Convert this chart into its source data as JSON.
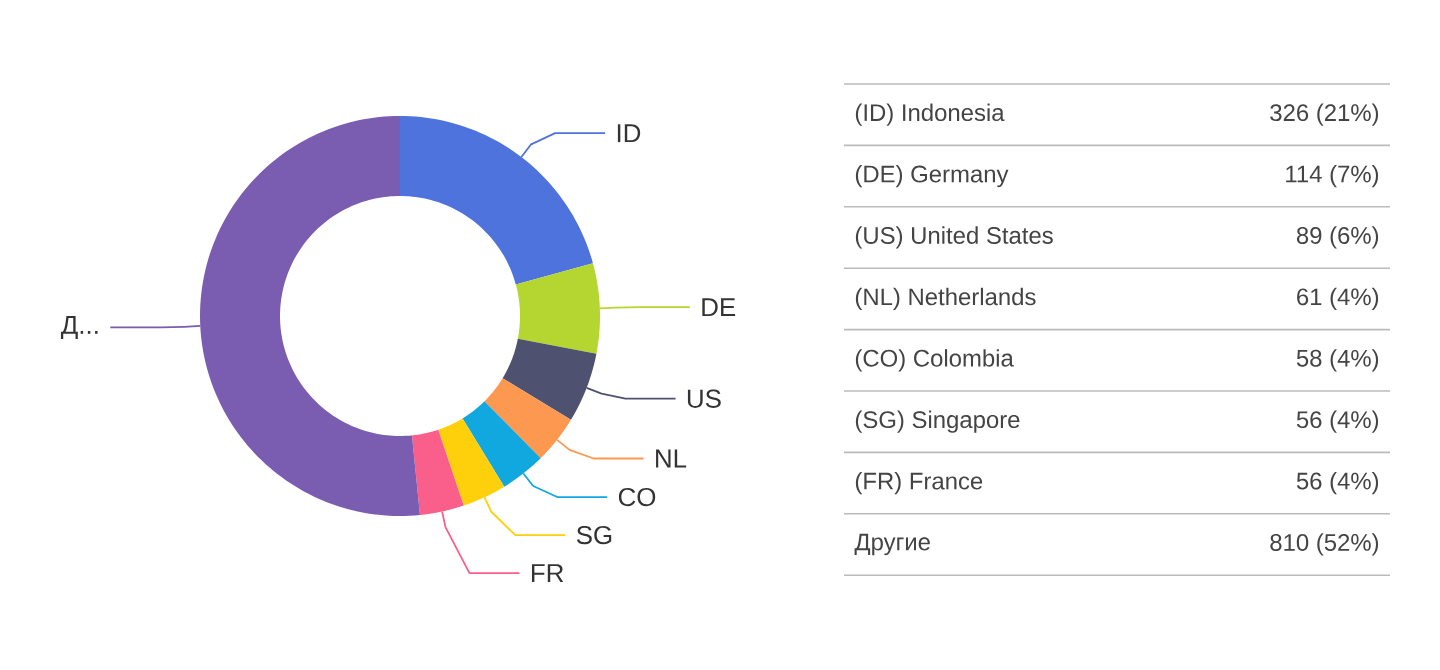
{
  "chart_data": {
    "type": "donut",
    "categories": [
      "ID",
      "DE",
      "US",
      "NL",
      "CO",
      "SG",
      "FR",
      "Д..."
    ],
    "values": [
      20.76,
      7.26,
      5.67,
      3.89,
      3.69,
      3.57,
      3.57,
      51.59
    ],
    "colors": [
      "#4f73dc",
      "#b5d630",
      "#4e5270",
      "#fd9850",
      "#10a8de",
      "#fdd00b",
      "#f95f8a",
      "#7a5cb0"
    ],
    "annotations": [
      "(ID) Indonesia",
      "326 (21%)",
      "(DE) Germany",
      "114 (7%)",
      "(US) United States",
      "89 (6%)",
      "(NL) Netherlands",
      "61 (4%)",
      "(CO) Colombia",
      "58 (4%)",
      "(SG) Singapore",
      "56 (4%)",
      "(FR) France",
      "56 (4%)",
      "Другие",
      "810 (52%)"
    ]
  }
}
